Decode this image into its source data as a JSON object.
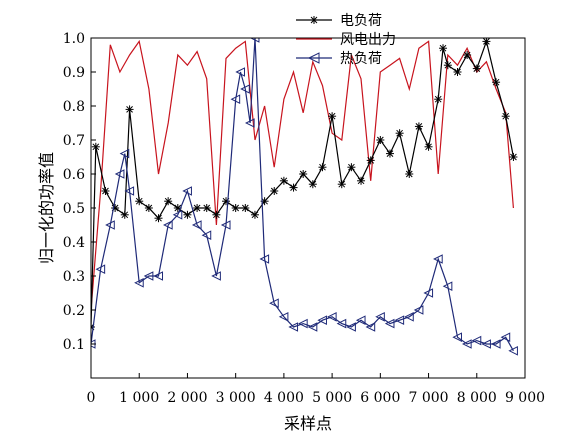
{
  "chart_data": {
    "type": "line",
    "title": "",
    "xlabel": "采样点",
    "ylabel": "归一化的功率值",
    "xlim": [
      0,
      9000
    ],
    "ylim": [
      0,
      1.0
    ],
    "x_ticks": [
      0,
      1000,
      2000,
      3000,
      4000,
      5000,
      6000,
      7000,
      8000,
      9000
    ],
    "x_tick_labels": [
      "0",
      "1 000",
      "2 000",
      "3 000",
      "4 000",
      "5 000",
      "6 000",
      "7 000",
      "8 000",
      "9 000"
    ],
    "y_ticks": [
      0.1,
      0.2,
      0.3,
      0.4,
      0.5,
      0.6,
      0.7,
      0.8,
      0.9,
      1.0
    ],
    "y_tick_labels": [
      "0.1",
      "0.2",
      "0.3",
      "0.4",
      "0.5",
      "0.6",
      "0.7",
      "0.8",
      "0.9",
      "1.0"
    ],
    "grid": false,
    "legend_position": "top-right",
    "series": [
      {
        "name": "电负荷",
        "color": "#000000",
        "marker": "asterisk",
        "x": [
          0,
          100,
          300,
          500,
          700,
          800,
          1000,
          1200,
          1400,
          1600,
          1800,
          2000,
          2200,
          2400,
          2600,
          2800,
          3000,
          3200,
          3400,
          3600,
          3800,
          4000,
          4200,
          4400,
          4600,
          4800,
          5000,
          5200,
          5400,
          5600,
          5800,
          6000,
          6200,
          6400,
          6600,
          6800,
          7000,
          7200,
          7300,
          7400,
          7600,
          7800,
          8000,
          8200,
          8400,
          8600,
          8760
        ],
        "y": [
          0.15,
          0.68,
          0.55,
          0.5,
          0.48,
          0.79,
          0.52,
          0.5,
          0.47,
          0.52,
          0.5,
          0.48,
          0.5,
          0.5,
          0.48,
          0.52,
          0.5,
          0.5,
          0.48,
          0.52,
          0.55,
          0.58,
          0.56,
          0.6,
          0.57,
          0.62,
          0.77,
          0.57,
          0.62,
          0.58,
          0.64,
          0.7,
          0.66,
          0.72,
          0.6,
          0.74,
          0.68,
          0.82,
          0.97,
          0.92,
          0.9,
          0.95,
          0.91,
          0.99,
          0.87,
          0.77,
          0.65
        ]
      },
      {
        "name": "风电出力",
        "color": "#c8141e",
        "marker": "none",
        "x": [
          0,
          200,
          400,
          600,
          800,
          1000,
          1200,
          1400,
          1600,
          1800,
          2000,
          2200,
          2400,
          2600,
          2800,
          3000,
          3200,
          3400,
          3600,
          3800,
          4000,
          4200,
          4400,
          4600,
          4800,
          5000,
          5200,
          5400,
          5600,
          5800,
          6000,
          6200,
          6400,
          6600,
          6800,
          7000,
          7200,
          7400,
          7600,
          7800,
          8000,
          8200,
          8400,
          8600,
          8760
        ],
        "y": [
          0.2,
          0.55,
          0.98,
          0.9,
          0.95,
          0.99,
          0.85,
          0.6,
          0.75,
          0.95,
          0.92,
          0.96,
          0.88,
          0.45,
          0.94,
          0.97,
          0.99,
          0.7,
          0.8,
          0.62,
          0.82,
          0.9,
          0.78,
          0.93,
          0.86,
          0.72,
          0.7,
          0.95,
          0.88,
          0.58,
          0.9,
          0.92,
          0.94,
          0.85,
          0.97,
          0.99,
          0.6,
          0.95,
          0.92,
          0.97,
          0.9,
          0.93,
          0.85,
          0.78,
          0.5
        ]
      },
      {
        "name": "热负荷",
        "color": "#1f2a78",
        "marker": "triangle-left",
        "x": [
          0,
          200,
          400,
          600,
          700,
          800,
          1000,
          1200,
          1400,
          1600,
          1800,
          2000,
          2200,
          2400,
          2600,
          2800,
          3000,
          3100,
          3200,
          3300,
          3400,
          3600,
          3800,
          4000,
          4200,
          4400,
          4600,
          4800,
          5000,
          5200,
          5400,
          5600,
          5800,
          6000,
          6200,
          6400,
          6600,
          6800,
          7000,
          7200,
          7400,
          7600,
          7800,
          8000,
          8200,
          8400,
          8600,
          8760
        ],
        "y": [
          0.1,
          0.32,
          0.45,
          0.6,
          0.66,
          0.55,
          0.28,
          0.3,
          0.3,
          0.45,
          0.48,
          0.55,
          0.45,
          0.42,
          0.3,
          0.45,
          0.82,
          0.9,
          0.85,
          0.75,
          1.0,
          0.35,
          0.22,
          0.18,
          0.15,
          0.16,
          0.15,
          0.17,
          0.18,
          0.16,
          0.15,
          0.17,
          0.15,
          0.18,
          0.16,
          0.17,
          0.18,
          0.2,
          0.25,
          0.35,
          0.27,
          0.12,
          0.1,
          0.11,
          0.1,
          0.1,
          0.12,
          0.08
        ]
      }
    ]
  }
}
